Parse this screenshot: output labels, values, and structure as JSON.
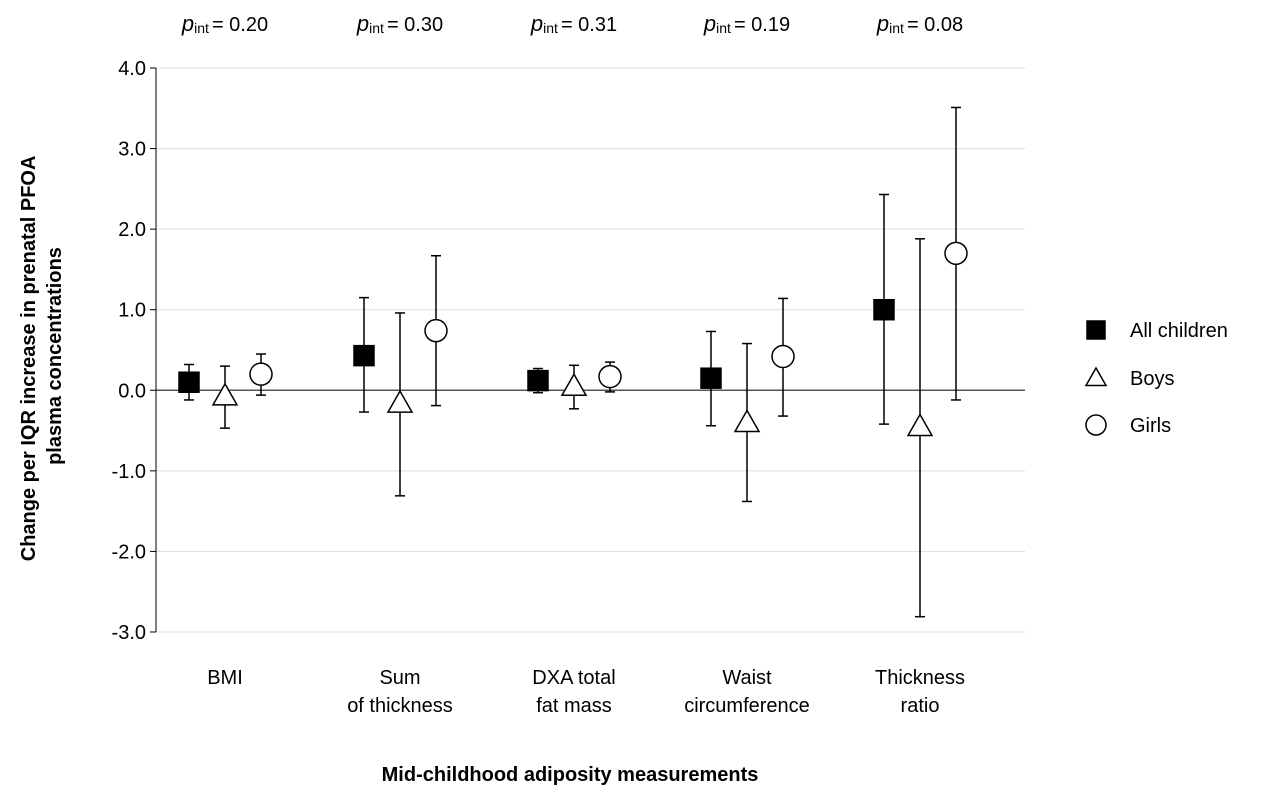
{
  "chart_data": {
    "type": "scatter",
    "subtype": "point-estimate-with-error-bars",
    "xlabel": "Mid-childhood adiposity measurements",
    "ylabel_lines": [
      "Change per IQR increase in prenatal PFOA",
      "plasma concentrations"
    ],
    "ylim": [
      -3.0,
      4.0
    ],
    "yticks": [
      "4.0",
      "3.0",
      "2.0",
      "1.0",
      "0.0",
      "-1.0",
      "-2.0",
      "-3.0"
    ],
    "grid": true,
    "reference_line": 0,
    "legend_position": "right",
    "categories": [
      {
        "lines": [
          "BMI"
        ],
        "p_prefix": "p",
        "p_sub": "int",
        "p_value": "= 0.20"
      },
      {
        "lines": [
          "Sum",
          "of thickness"
        ],
        "p_prefix": "p",
        "p_sub": "int",
        "p_value": "= 0.30"
      },
      {
        "lines": [
          "DXA total",
          "fat mass"
        ],
        "p_prefix": "p",
        "p_sub": "int",
        "p_value": "= 0.31"
      },
      {
        "lines": [
          "Waist",
          "circumference"
        ],
        "p_prefix": "p",
        "p_sub": "int",
        "p_value": "= 0.19"
      },
      {
        "lines": [
          "Thickness",
          "ratio"
        ],
        "p_prefix": "p",
        "p_sub": "int",
        "p_value": "= 0.08"
      }
    ],
    "series": [
      {
        "name": "All children",
        "marker": "filled-square",
        "points": [
          {
            "y": 0.1,
            "lo": -0.12,
            "hi": 0.32
          },
          {
            "y": 0.43,
            "lo": -0.27,
            "hi": 1.15
          },
          {
            "y": 0.12,
            "lo": -0.03,
            "hi": 0.27
          },
          {
            "y": 0.15,
            "lo": -0.44,
            "hi": 0.73
          },
          {
            "y": 1.0,
            "lo": -0.42,
            "hi": 2.43
          }
        ]
      },
      {
        "name": "Boys",
        "marker": "open-triangle",
        "points": [
          {
            "y": -0.07,
            "lo": -0.47,
            "hi": 0.3
          },
          {
            "y": -0.16,
            "lo": -1.31,
            "hi": 0.96
          },
          {
            "y": 0.05,
            "lo": -0.23,
            "hi": 0.31
          },
          {
            "y": -0.4,
            "lo": -1.38,
            "hi": 0.58
          },
          {
            "y": -0.45,
            "lo": -2.81,
            "hi": 1.88
          }
        ]
      },
      {
        "name": "Girls",
        "marker": "open-circle",
        "points": [
          {
            "y": 0.2,
            "lo": -0.06,
            "hi": 0.45
          },
          {
            "y": 0.74,
            "lo": -0.19,
            "hi": 1.67
          },
          {
            "y": 0.17,
            "lo": -0.02,
            "hi": 0.35
          },
          {
            "y": 0.42,
            "lo": -0.32,
            "hi": 1.14
          },
          {
            "y": 1.7,
            "lo": -0.12,
            "hi": 3.51
          }
        ]
      }
    ]
  }
}
